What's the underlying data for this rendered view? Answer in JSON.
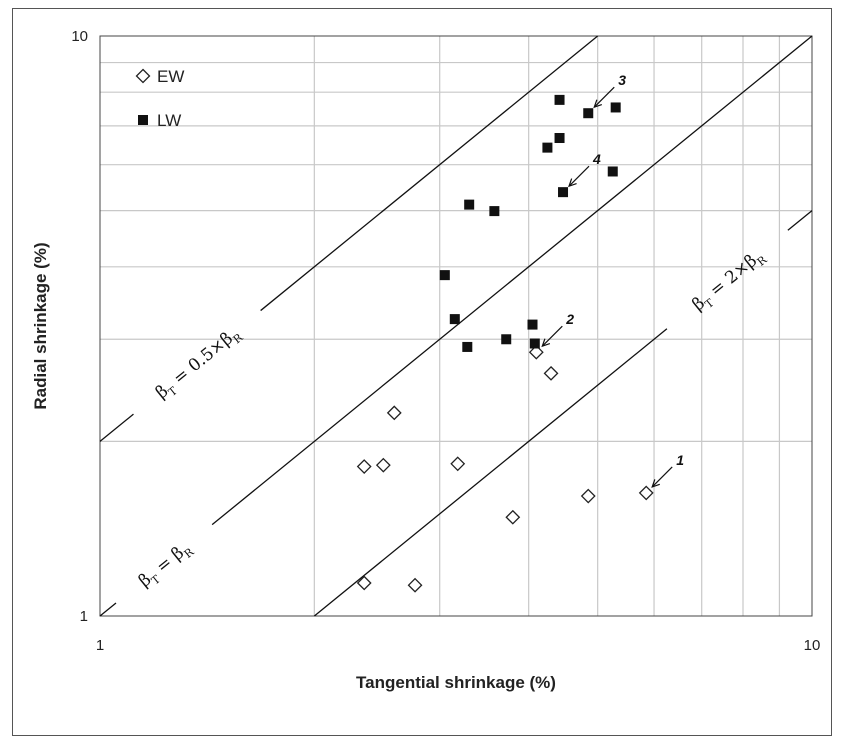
{
  "chart_data": {
    "type": "scatter",
    "x_scale": "log",
    "y_scale": "log",
    "xlim": [
      1,
      10
    ],
    "ylim": [
      1,
      10
    ],
    "xlabel": "Tangential shrinkage (%)",
    "ylabel": "Radial shrinkage (%)",
    "x_tick_labels": [
      "1",
      "10"
    ],
    "y_tick_labels": [
      "1",
      "10"
    ],
    "grid": true,
    "legend": {
      "placement": "top-left",
      "entries": [
        "EW",
        "LW"
      ]
    },
    "series": [
      {
        "name": "EW",
        "marker": "open-diamond",
        "points": [
          [
            2.35,
            1.14
          ],
          [
            2.77,
            1.13
          ],
          [
            2.35,
            1.81
          ],
          [
            2.5,
            1.82
          ],
          [
            2.59,
            2.24
          ],
          [
            3.18,
            1.83
          ],
          [
            3.8,
            1.48
          ],
          [
            4.85,
            1.61
          ],
          [
            5.85,
            1.63
          ],
          [
            4.3,
            2.62
          ],
          [
            4.1,
            2.85
          ]
        ]
      },
      {
        "name": "LW",
        "marker": "filled-square",
        "points": [
          [
            3.05,
            3.87
          ],
          [
            3.15,
            3.25
          ],
          [
            3.28,
            2.91
          ],
          [
            3.3,
            5.12
          ],
          [
            3.58,
            4.99
          ],
          [
            3.72,
            3.0
          ],
          [
            4.05,
            3.18
          ],
          [
            4.08,
            2.95
          ],
          [
            4.25,
            6.42
          ],
          [
            4.42,
            6.67
          ],
          [
            4.42,
            7.76
          ],
          [
            4.47,
            5.38
          ],
          [
            4.85,
            7.36
          ],
          [
            5.3,
            7.53
          ],
          [
            5.25,
            5.84
          ]
        ]
      }
    ],
    "reference_lines": [
      {
        "label_main": "β",
        "label_sub1": "T",
        "label_mid": " = 0.5×β",
        "label_sub2": "R",
        "slope_factor": 0.5
      },
      {
        "label_main": "β",
        "label_sub1": "T",
        "label_mid": " = β",
        "label_sub2": "R",
        "slope_factor": 1
      },
      {
        "label_main": "β",
        "label_sub1": "T",
        "label_mid": " = 2×β",
        "label_sub2": "R",
        "slope_factor": 2
      }
    ],
    "annotations": [
      {
        "text": "1",
        "target": [
          5.85,
          1.63
        ]
      },
      {
        "text": "2",
        "target": [
          4.1,
          2.85
        ]
      },
      {
        "text": "3",
        "target": [
          4.85,
          7.36
        ]
      },
      {
        "text": "4",
        "target": [
          4.47,
          5.38
        ]
      }
    ]
  }
}
